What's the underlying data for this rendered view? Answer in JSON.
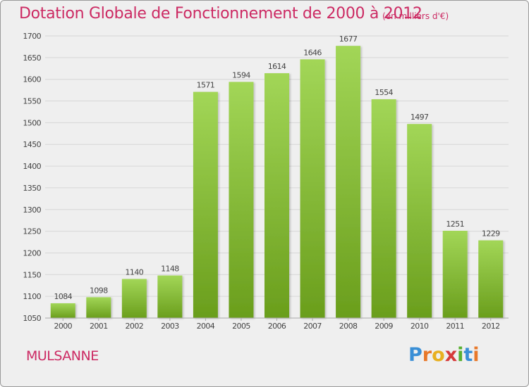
{
  "title": "Dotation Globale de Fonctionnement de 2000 à 2012",
  "subtitle": "(en milliers d'€)",
  "city": "MULSANNE",
  "logo": {
    "letters": [
      {
        "char": "P",
        "color": "#3a8fd6"
      },
      {
        "char": "r",
        "color": "#e8782a"
      },
      {
        "char": "o",
        "color": "#e8b020"
      },
      {
        "char": "x",
        "color": "#d63a3a"
      },
      {
        "char": "i",
        "color": "#58b030"
      },
      {
        "char": "t",
        "color": "#3a8fd6"
      },
      {
        "char": "i",
        "color": "#e8782a"
      }
    ]
  },
  "colors": {
    "accent": "#cc2a63",
    "bar_top": "#a2d657",
    "bar_bottom": "#6a9e1c",
    "grid": "#d6d6d6"
  },
  "chart_data": {
    "type": "bar",
    "categories": [
      "2000",
      "2001",
      "2002",
      "2003",
      "2004",
      "2005",
      "2006",
      "2007",
      "2008",
      "2009",
      "2010",
      "2011",
      "2012"
    ],
    "values": [
      1084,
      1098,
      1140,
      1148,
      1571,
      1594,
      1614,
      1646,
      1677,
      1554,
      1497,
      1251,
      1229
    ],
    "ylim": [
      1050,
      1700
    ],
    "yticks": [
      1050,
      1100,
      1150,
      1200,
      1250,
      1300,
      1350,
      1400,
      1450,
      1500,
      1550,
      1600,
      1650,
      1700
    ],
    "grid": true
  }
}
